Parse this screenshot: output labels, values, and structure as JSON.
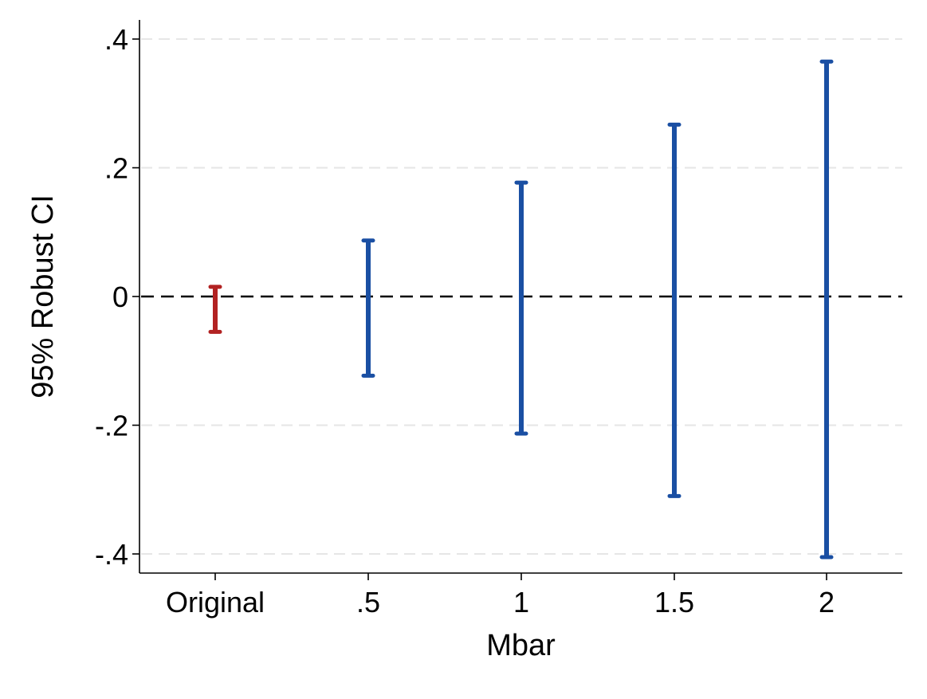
{
  "chart_data": {
    "type": "error_bar",
    "title": "",
    "xlabel": "Mbar",
    "ylabel": "95% Robust CI",
    "categories": [
      "Original",
      ".5",
      "1",
      "1.5",
      "2"
    ],
    "ylim": [
      -0.43,
      0.43
    ],
    "yticks": [
      {
        "value": 0.4,
        "label": ".4"
      },
      {
        "value": 0.2,
        "label": ".2"
      },
      {
        "value": 0,
        "label": "0"
      },
      {
        "value": -0.2,
        "label": "-.2"
      },
      {
        "value": -0.4,
        "label": "-.4"
      }
    ],
    "reference_line": {
      "y": 0,
      "style": "dashed",
      "color": "#000000"
    },
    "grid": {
      "horizontal": true,
      "style": "dashed",
      "color": "#e6e6e6"
    },
    "intervals": [
      {
        "category": "Original",
        "lower": -0.055,
        "upper": 0.015,
        "color": "#b22222"
      },
      {
        "category": ".5",
        "lower": -0.123,
        "upper": 0.087,
        "color": "#1a4fa3"
      },
      {
        "category": "1",
        "lower": -0.213,
        "upper": 0.177,
        "color": "#1a4fa3"
      },
      {
        "category": "1.5",
        "lower": -0.31,
        "upper": 0.267,
        "color": "#1a4fa3"
      },
      {
        "category": "2",
        "lower": -0.405,
        "upper": 0.365,
        "color": "#1a4fa3"
      }
    ]
  }
}
